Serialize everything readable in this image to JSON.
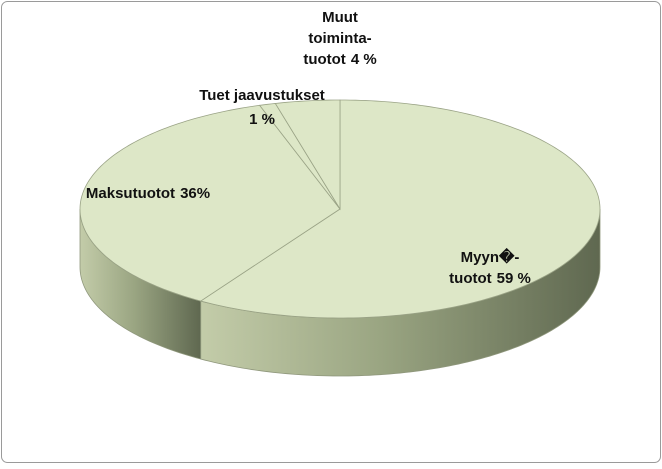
{
  "chart_data": {
    "type": "pie3d",
    "categories": [
      "Myyn�-\ntuotot",
      "Maksutuotot",
      "Tuet jaavustukset",
      "Muut\ntoiminta-\ntuotot"
    ],
    "values": [
      59,
      36,
      1,
      4
    ],
    "value_labels": [
      "59 %",
      "36%",
      "1 %",
      "4 %"
    ],
    "color": "#dde7c7"
  }
}
